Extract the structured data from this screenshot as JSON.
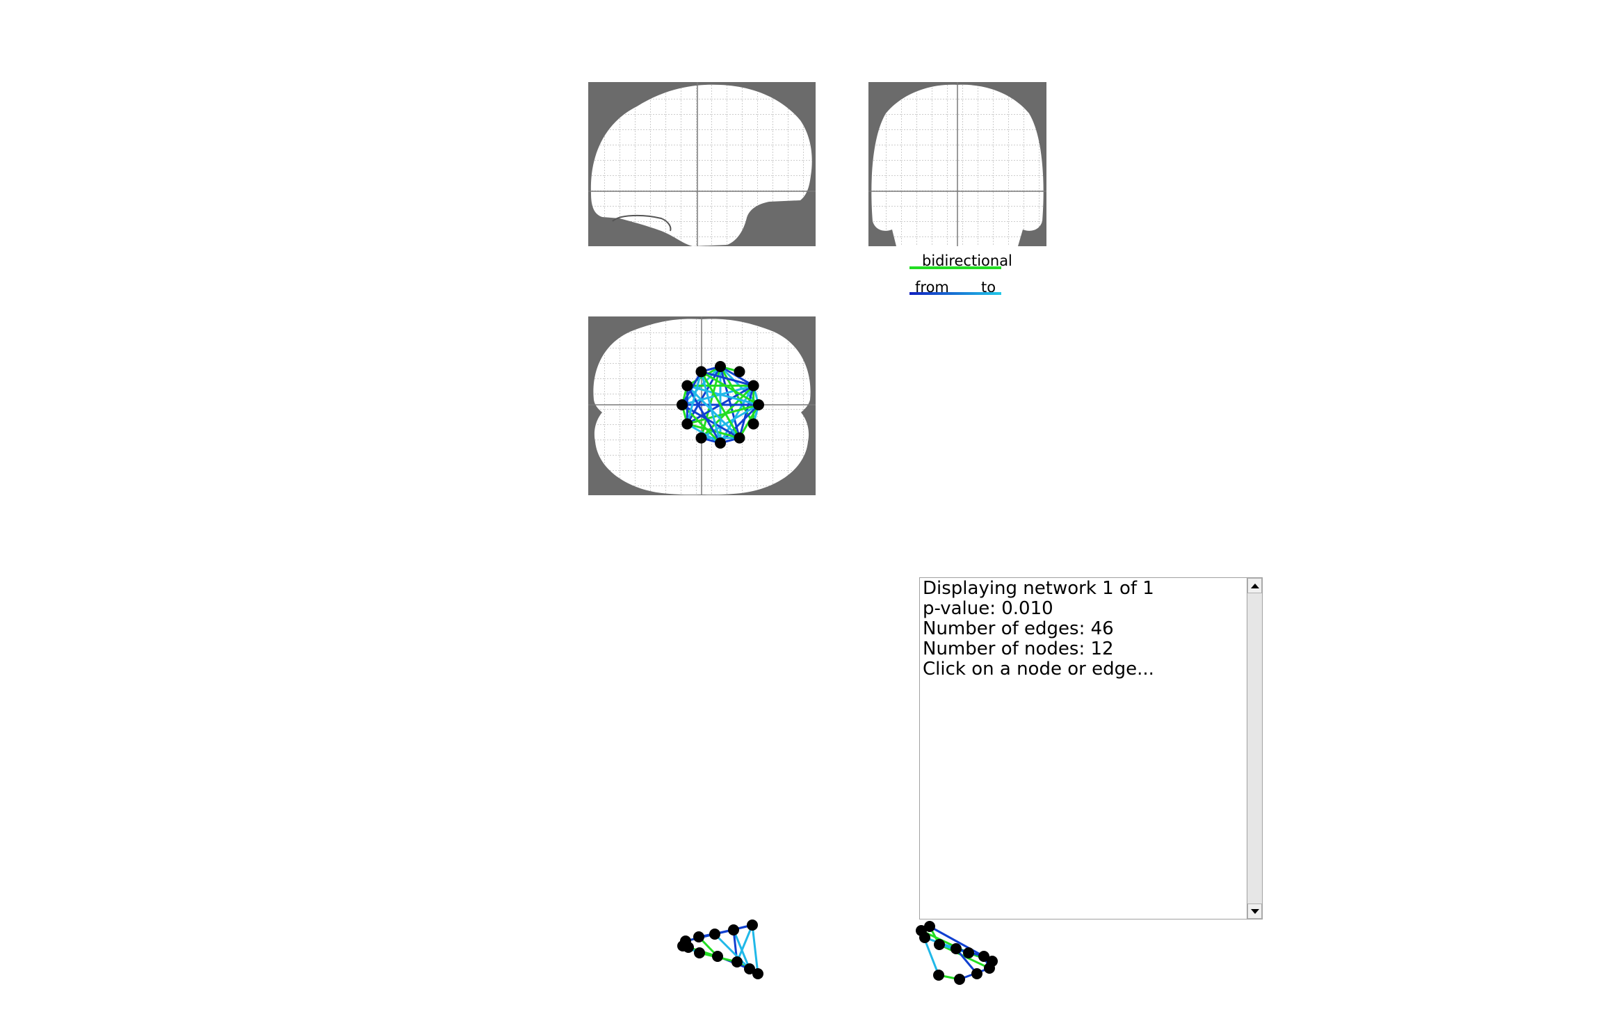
{
  "legend": {
    "bidirectional_label": "bidirectional",
    "from_label": "from",
    "to_label": "to",
    "colors": {
      "bidirectional": "#22dd22",
      "from": "#1020c0",
      "to": "#20c8e8"
    }
  },
  "info_box": {
    "lines": [
      "Displaying network 1 of 1",
      "p-value: 0.010",
      "Number of edges: 46",
      "Number of nodes: 12",
      "Click on a node or edge..."
    ]
  },
  "views": {
    "sagittal": "sagittal-view",
    "coronal": "coronal-view",
    "axial": "axial-view"
  },
  "colors": {
    "background_mask": "#6b6b6b",
    "brain": "#ffffff",
    "grid": "#8a8a8a",
    "node": "#000000",
    "edge_bidirectional": "#22dd22",
    "edge_from": "#1040d0",
    "edge_to": "#20b8e8"
  }
}
